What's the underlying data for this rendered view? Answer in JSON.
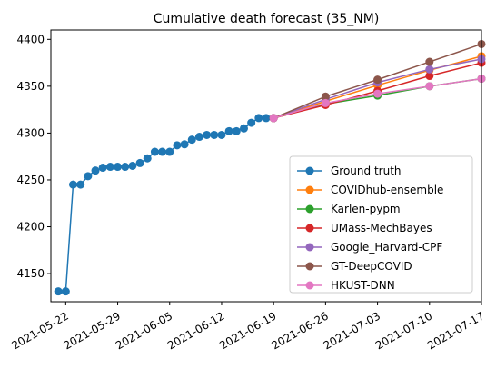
{
  "chart_data": {
    "type": "line",
    "title": "Cumulative death forecast (35_NM)",
    "xlabel": "",
    "ylabel": "",
    "x_ticks": [
      "2021-05-22",
      "2021-05-29",
      "2021-06-05",
      "2021-06-12",
      "2021-06-19",
      "2021-06-26",
      "2021-07-03",
      "2021-07-10",
      "2021-07-17"
    ],
    "y_ticks": [
      4150,
      4200,
      4250,
      4300,
      4350,
      4400
    ],
    "xlim": [
      "2021-05-20",
      "2021-07-17"
    ],
    "ylim": [
      4120,
      4410
    ],
    "grid": false,
    "legend_position": "lower right",
    "series": [
      {
        "name": "Ground truth",
        "color": "#1f77b4",
        "points": [
          [
            "2021-05-21",
            4131
          ],
          [
            "2021-05-22",
            4131
          ],
          [
            "2021-05-23",
            4245
          ],
          [
            "2021-05-24",
            4245
          ],
          [
            "2021-05-25",
            4254
          ],
          [
            "2021-05-26",
            4260
          ],
          [
            "2021-05-27",
            4263
          ],
          [
            "2021-05-28",
            4264
          ],
          [
            "2021-05-29",
            4264
          ],
          [
            "2021-05-30",
            4264
          ],
          [
            "2021-05-31",
            4265
          ],
          [
            "2021-06-01",
            4268
          ],
          [
            "2021-06-02",
            4273
          ],
          [
            "2021-06-03",
            4280
          ],
          [
            "2021-06-04",
            4280
          ],
          [
            "2021-06-05",
            4280
          ],
          [
            "2021-06-06",
            4287
          ],
          [
            "2021-06-07",
            4288
          ],
          [
            "2021-06-08",
            4293
          ],
          [
            "2021-06-09",
            4296
          ],
          [
            "2021-06-10",
            4298
          ],
          [
            "2021-06-11",
            4298
          ],
          [
            "2021-06-12",
            4298
          ],
          [
            "2021-06-13",
            4302
          ],
          [
            "2021-06-14",
            4302
          ],
          [
            "2021-06-15",
            4305
          ],
          [
            "2021-06-16",
            4311
          ],
          [
            "2021-06-17",
            4316
          ],
          [
            "2021-06-18",
            4316
          ],
          [
            "2021-06-19",
            4316
          ]
        ]
      },
      {
        "name": "COVIDhub-ensemble",
        "color": "#ff7f0e",
        "points": [
          [
            "2021-06-19",
            4316
          ],
          [
            "2021-06-26",
            4334
          ],
          [
            "2021-07-03",
            4351
          ],
          [
            "2021-07-10",
            4367
          ],
          [
            "2021-07-17",
            4382
          ]
        ]
      },
      {
        "name": "Karlen-pypm",
        "color": "#2ca02c",
        "points": [
          [
            "2021-06-19",
            4316
          ],
          [
            "2021-06-26",
            4331
          ],
          [
            "2021-07-03",
            4340
          ],
          [
            "2021-07-10",
            4350
          ],
          [
            "2021-07-17",
            4358
          ]
        ]
      },
      {
        "name": "UMass-MechBayes",
        "color": "#d62728",
        "points": [
          [
            "2021-06-19",
            4316
          ],
          [
            "2021-06-26",
            4330
          ],
          [
            "2021-07-03",
            4345
          ],
          [
            "2021-07-10",
            4361
          ],
          [
            "2021-07-17",
            4375
          ]
        ]
      },
      {
        "name": "Google_Harvard-CPF",
        "color": "#9467bd",
        "points": [
          [
            "2021-06-19",
            4316
          ],
          [
            "2021-06-26",
            4336
          ],
          [
            "2021-07-03",
            4354
          ],
          [
            "2021-07-10",
            4368
          ],
          [
            "2021-07-17",
            4379
          ]
        ]
      },
      {
        "name": "GT-DeepCOVID",
        "color": "#8c564b",
        "points": [
          [
            "2021-06-19",
            4316
          ],
          [
            "2021-06-26",
            4339
          ],
          [
            "2021-07-03",
            4357
          ],
          [
            "2021-07-10",
            4376
          ],
          [
            "2021-07-17",
            4395
          ]
        ]
      },
      {
        "name": "HKUST-DNN",
        "color": "#e377c2",
        "points": [
          [
            "2021-06-19",
            4316
          ],
          [
            "2021-06-26",
            4332
          ],
          [
            "2021-07-03",
            4342
          ],
          [
            "2021-07-10",
            4350
          ],
          [
            "2021-07-17",
            4358
          ]
        ]
      }
    ]
  }
}
